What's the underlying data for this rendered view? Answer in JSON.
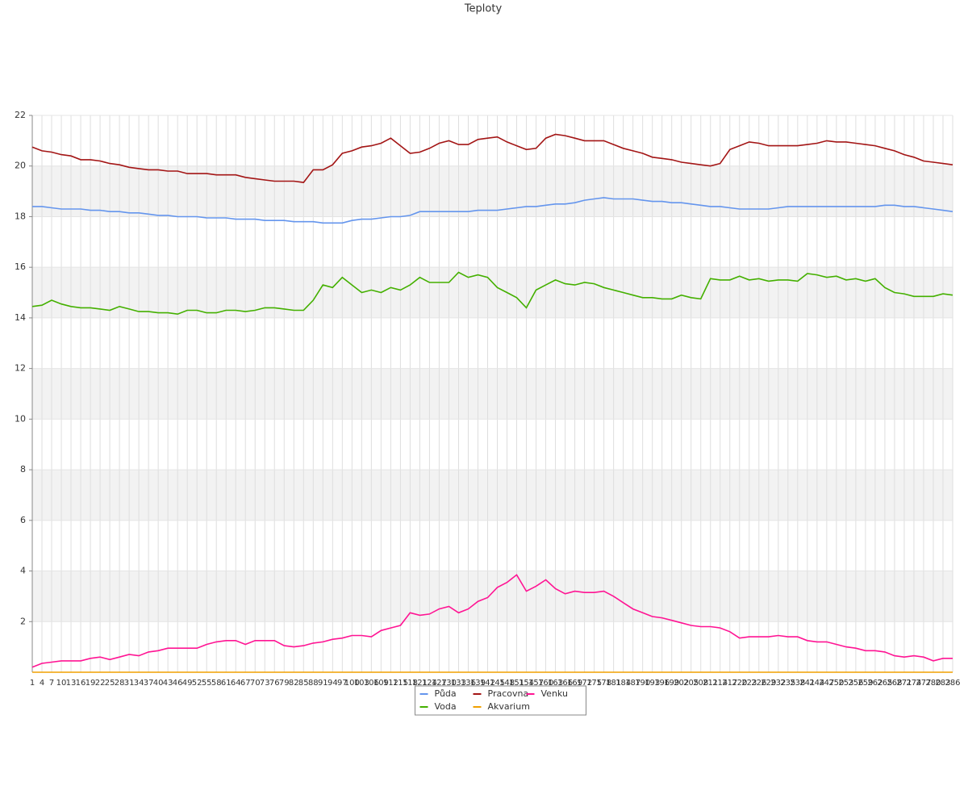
{
  "chart_data": {
    "type": "line",
    "title": "Teploty",
    "legend": "bottom",
    "grid": true,
    "ylim": [
      0,
      22
    ],
    "yticks": [
      2,
      4,
      6,
      8,
      10,
      12,
      14,
      16,
      18,
      20,
      22
    ],
    "categories": [
      1,
      4,
      7,
      10,
      13,
      16,
      19,
      22,
      25,
      28,
      31,
      34,
      37,
      40,
      43,
      46,
      49,
      52,
      55,
      58,
      61,
      64,
      67,
      70,
      73,
      76,
      79,
      82,
      85,
      88,
      91,
      94,
      97,
      100,
      103,
      106,
      109,
      112,
      115,
      118,
      121,
      124,
      127,
      130,
      133,
      136,
      139,
      142,
      145,
      148,
      151,
      154,
      157,
      160,
      163,
      166,
      169,
      172,
      175,
      178,
      181,
      184,
      187,
      190,
      193,
      196,
      199,
      202,
      205,
      208,
      211,
      214,
      217,
      220,
      223,
      226,
      229,
      232,
      235,
      238,
      241,
      244,
      247,
      250,
      253,
      256,
      259,
      262,
      265,
      268,
      271,
      274,
      277,
      280,
      283,
      286
    ],
    "series": [
      {
        "name": "Půda",
        "color": "#6495ed",
        "values": [
          18.4,
          18.4,
          18.35,
          18.3,
          18.3,
          18.3,
          18.25,
          18.25,
          18.2,
          18.2,
          18.15,
          18.15,
          18.1,
          18.05,
          18.05,
          18.0,
          18.0,
          18.0,
          17.95,
          17.95,
          17.95,
          17.9,
          17.9,
          17.9,
          17.85,
          17.85,
          17.85,
          17.8,
          17.8,
          17.8,
          17.75,
          17.75,
          17.75,
          17.85,
          17.9,
          17.9,
          17.95,
          18.0,
          18.0,
          18.05,
          18.2,
          18.2,
          18.2,
          18.2,
          18.2,
          18.2,
          18.25,
          18.25,
          18.25,
          18.3,
          18.35,
          18.4,
          18.4,
          18.45,
          18.5,
          18.5,
          18.55,
          18.65,
          18.7,
          18.75,
          18.7,
          18.7,
          18.7,
          18.65,
          18.6,
          18.6,
          18.55,
          18.55,
          18.5,
          18.45,
          18.4,
          18.4,
          18.35,
          18.3,
          18.3,
          18.3,
          18.3,
          18.35,
          18.4,
          18.4,
          18.4,
          18.4,
          18.4,
          18.4,
          18.4,
          18.4,
          18.4,
          18.4,
          18.45,
          18.45,
          18.4,
          18.4,
          18.35,
          18.3,
          18.25,
          18.2
        ]
      },
      {
        "name": "Voda",
        "color": "#44b000",
        "values": [
          14.45,
          14.5,
          14.7,
          14.55,
          14.45,
          14.4,
          14.4,
          14.35,
          14.3,
          14.45,
          14.35,
          14.25,
          14.25,
          14.2,
          14.2,
          14.15,
          14.3,
          14.3,
          14.2,
          14.2,
          14.3,
          14.3,
          14.25,
          14.3,
          14.4,
          14.4,
          14.35,
          14.3,
          14.3,
          14.7,
          15.3,
          15.2,
          15.6,
          15.3,
          15.0,
          15.1,
          15.0,
          15.2,
          15.1,
          15.3,
          15.6,
          15.4,
          15.4,
          15.4,
          15.8,
          15.6,
          15.7,
          15.6,
          15.2,
          15.0,
          14.8,
          14.4,
          15.1,
          15.3,
          15.5,
          15.35,
          15.3,
          15.4,
          15.35,
          15.2,
          15.1,
          15.0,
          14.9,
          14.8,
          14.8,
          14.75,
          14.75,
          14.9,
          14.8,
          14.75,
          15.55,
          15.5,
          15.5,
          15.65,
          15.5,
          15.55,
          15.45,
          15.5,
          15.5,
          15.45,
          15.75,
          15.7,
          15.6,
          15.65,
          15.5,
          15.55,
          15.45,
          15.55,
          15.2,
          15.0,
          14.95,
          14.85,
          14.85,
          14.85,
          14.95,
          14.9
        ]
      },
      {
        "name": "Pracovna",
        "color": "#a31515",
        "values": [
          20.75,
          20.6,
          20.55,
          20.45,
          20.4,
          20.25,
          20.25,
          20.2,
          20.1,
          20.05,
          19.95,
          19.9,
          19.85,
          19.85,
          19.8,
          19.8,
          19.7,
          19.7,
          19.7,
          19.65,
          19.65,
          19.65,
          19.55,
          19.5,
          19.45,
          19.4,
          19.4,
          19.4,
          19.35,
          19.85,
          19.85,
          20.05,
          20.5,
          20.6,
          20.75,
          20.8,
          20.9,
          21.1,
          20.8,
          20.5,
          20.55,
          20.7,
          20.9,
          21.0,
          20.85,
          20.85,
          21.05,
          21.1,
          21.15,
          20.95,
          20.8,
          20.65,
          20.7,
          21.1,
          21.25,
          21.2,
          21.1,
          21.0,
          21.0,
          21.0,
          20.85,
          20.7,
          20.6,
          20.5,
          20.35,
          20.3,
          20.25,
          20.15,
          20.1,
          20.05,
          20.0,
          20.1,
          20.65,
          20.8,
          20.95,
          20.9,
          20.8,
          20.8,
          20.8,
          20.8,
          20.85,
          20.9,
          21.0,
          20.95,
          20.95,
          20.9,
          20.85,
          20.8,
          20.7,
          20.6,
          20.45,
          20.35,
          20.2,
          20.15,
          20.1,
          20.05
        ]
      },
      {
        "name": "Akvarium",
        "color": "#f0a000",
        "values": [
          0,
          0,
          0,
          0,
          0,
          0,
          0,
          0,
          0,
          0,
          0,
          0,
          0,
          0,
          0,
          0,
          0,
          0,
          0,
          0,
          0,
          0,
          0,
          0,
          0,
          0,
          0,
          0,
          0,
          0,
          0,
          0,
          0,
          0,
          0,
          0,
          0,
          0,
          0,
          0,
          0,
          0,
          0,
          0,
          0,
          0,
          0,
          0,
          0,
          0,
          0,
          0,
          0,
          0,
          0,
          0,
          0,
          0,
          0,
          0,
          0,
          0,
          0,
          0,
          0,
          0,
          0,
          0,
          0,
          0,
          0,
          0,
          0,
          0,
          0,
          0,
          0,
          0,
          0,
          0,
          0,
          0,
          0,
          0,
          0,
          0,
          0,
          0,
          0,
          0,
          0,
          0,
          0,
          0,
          0,
          0
        ]
      },
      {
        "name": "Venku",
        "color": "#ff1493",
        "values": [
          0.2,
          0.35,
          0.4,
          0.45,
          0.45,
          0.45,
          0.55,
          0.6,
          0.5,
          0.6,
          0.7,
          0.65,
          0.8,
          0.85,
          0.95,
          0.95,
          0.95,
          0.95,
          1.1,
          1.2,
          1.25,
          1.25,
          1.1,
          1.25,
          1.25,
          1.25,
          1.05,
          1.0,
          1.05,
          1.15,
          1.2,
          1.3,
          1.35,
          1.45,
          1.45,
          1.4,
          1.65,
          1.75,
          1.85,
          2.35,
          2.25,
          2.3,
          2.5,
          2.6,
          2.35,
          2.5,
          2.8,
          2.95,
          3.35,
          3.55,
          3.85,
          3.2,
          3.4,
          3.65,
          3.3,
          3.1,
          3.2,
          3.15,
          3.15,
          3.2,
          3.0,
          2.75,
          2.5,
          2.35,
          2.2,
          2.15,
          2.05,
          1.95,
          1.85,
          1.8,
          1.8,
          1.75,
          1.6,
          1.35,
          1.4,
          1.4,
          1.4,
          1.45,
          1.4,
          1.4,
          1.25,
          1.2,
          1.2,
          1.1,
          1.0,
          0.95,
          0.85,
          0.85,
          0.8,
          0.65,
          0.6,
          0.65,
          0.6,
          0.45,
          0.55,
          0.55
        ]
      }
    ]
  }
}
